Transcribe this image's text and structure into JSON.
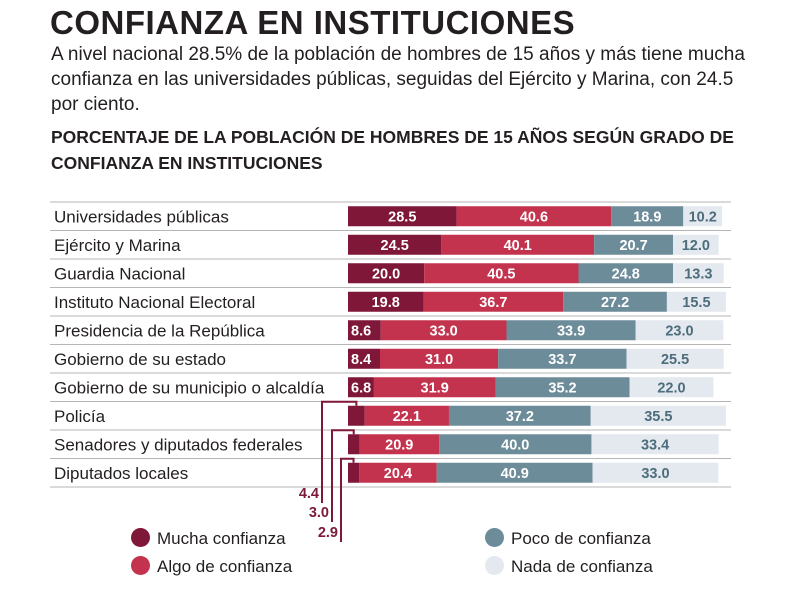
{
  "header": {
    "title": "CONFIANZA EN INSTITUCIONES",
    "subtitle": "A nivel nacional 28.5% de la población de hombres de 15 años y más tiene mucha confianza en las universidades públicas, seguidas del Ejército y Marina, con 24.5 por ciento.",
    "chart_title": "PORCENTAJE DE LA POBLACIÓN DE HOMBRES DE 15 AÑOS SEGÚN GRADO DE CONFIANZA EN INSTITUCIONES"
  },
  "legend": {
    "mucha": "Mucha confianza",
    "algo": "Algo de confianza",
    "poco": "Poco de confianza",
    "nada": "Nada de confianza"
  },
  "colors": {
    "mucha": "#7f1738",
    "algo": "#c4334e",
    "poco": "#6d8c9a",
    "nada": "#e3e9ef"
  },
  "chart_data": {
    "type": "bar",
    "orientation": "horizontal",
    "stacked": true,
    "categories": [
      "Universidades públicas",
      "Ejército y Marina",
      "Guardia Nacional",
      "Instituto Nacional Electoral",
      "Presidencia de la República",
      "Gobierno de su estado",
      "Gobierno de su municipio o alcaldía",
      "Policía",
      "Senadores y diputados federales",
      "Diputados locales"
    ],
    "series": [
      {
        "name": "Mucha confianza",
        "values": [
          28.5,
          24.5,
          20.0,
          19.8,
          8.6,
          8.4,
          6.8,
          4.4,
          3.0,
          2.9
        ],
        "labels": [
          "28.5",
          "24.5",
          "20.0",
          "19.8",
          "8.6",
          "8.4",
          "6.8",
          "4.4",
          "3.0",
          "2.9"
        ]
      },
      {
        "name": "Algo de confianza",
        "values": [
          40.6,
          40.1,
          40.5,
          36.7,
          33.0,
          31.0,
          31.9,
          22.1,
          20.9,
          20.4
        ],
        "labels": [
          "40.6",
          "40.1",
          "40.5",
          "36.7",
          "33.0",
          "31.0",
          "31.9",
          "22.1",
          "20.9",
          "20.4"
        ]
      },
      {
        "name": "Poco de confianza",
        "values": [
          18.9,
          20.7,
          24.8,
          27.2,
          33.9,
          33.7,
          35.2,
          37.2,
          40.0,
          40.9
        ],
        "labels": [
          "18.9",
          "20.7",
          "24.8",
          "27.2",
          "33.9",
          "33.7",
          "35.2",
          "37.2",
          "40.0",
          "40.9"
        ]
      },
      {
        "name": "Nada de confianza",
        "values": [
          10.2,
          12.0,
          13.3,
          15.5,
          23.0,
          25.5,
          22.0,
          35.5,
          33.4,
          33.0
        ],
        "labels": [
          "10.2",
          "12.0",
          "13.3",
          "15.5",
          "23.0",
          "25.5",
          "22.0",
          "35.5",
          "33.4",
          "33.0"
        ]
      }
    ]
  }
}
